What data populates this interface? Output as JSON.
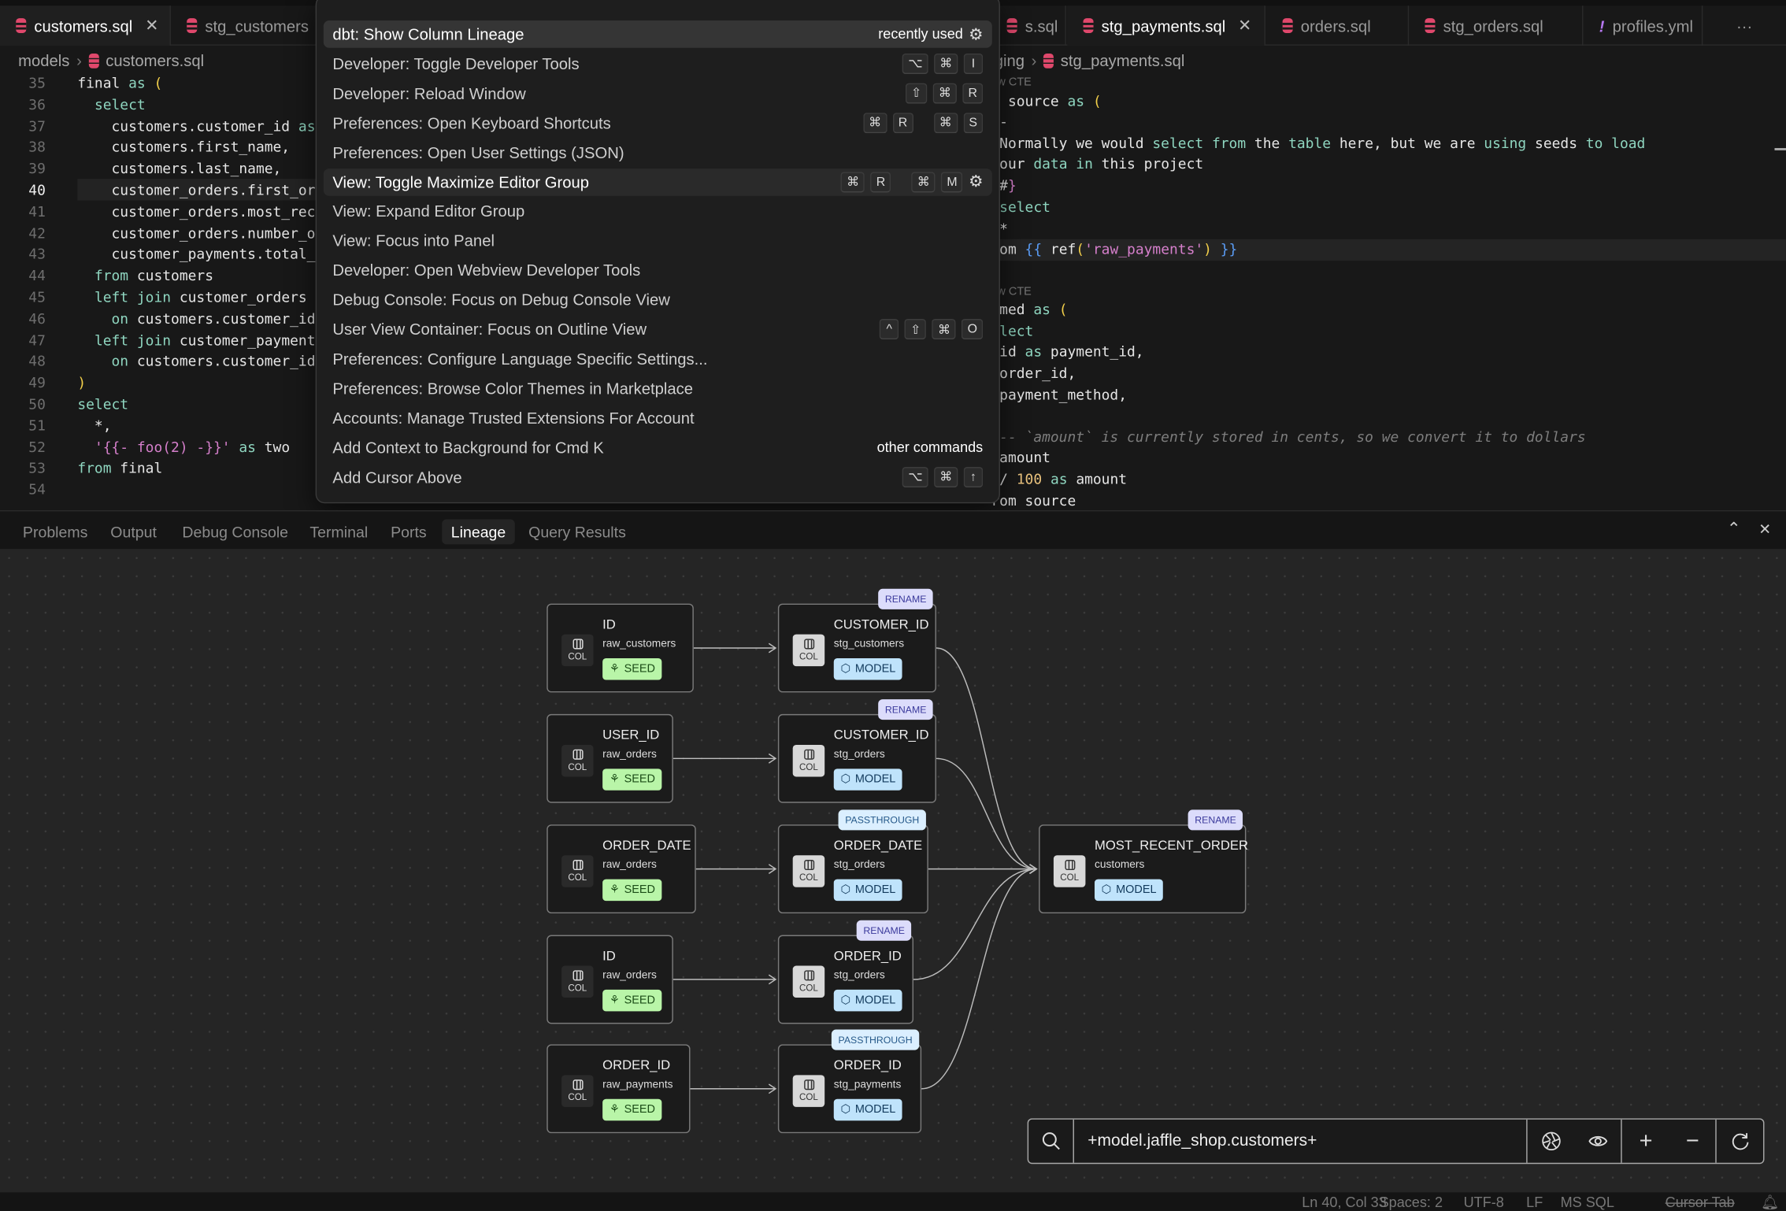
{
  "editor_tabs": [
    {
      "label": "customers.sql",
      "icon": "database-icon",
      "active": true
    },
    {
      "label": "stg_customers",
      "icon": "database-icon"
    },
    {
      "label": "s.sql",
      "icon": "database-icon"
    },
    {
      "label": "stg_payments.sql",
      "icon": "database-icon",
      "active_in_group": true
    },
    {
      "label": "orders.sql",
      "icon": "database-icon"
    },
    {
      "label": "stg_orders.sql",
      "icon": "database-icon"
    },
    {
      "label": "profiles.yml",
      "icon": "yaml-exclamation-icon"
    }
  ],
  "tab_overflow": "···",
  "tab_close": "✕",
  "left_editor": {
    "breadcrumb": [
      "models",
      "customers.sql"
    ],
    "current_line": 40,
    "lines": [
      {
        "n": "35",
        "seg": [
          [
            "final ",
            ""
          ],
          [
            "as",
            "kw"
          ],
          [
            " ",
            ""
          ],
          [
            "(",
            "par"
          ]
        ]
      },
      {
        "n": "36",
        "seg": [
          [
            "  ",
            ""
          ],
          [
            "select",
            "kw"
          ]
        ]
      },
      {
        "n": "37",
        "seg": [
          [
            "    customers.customer_id ",
            ""
          ],
          [
            "as",
            "kw"
          ]
        ]
      },
      {
        "n": "38",
        "seg": [
          [
            "    customers.first_name,",
            ""
          ]
        ]
      },
      {
        "n": "39",
        "seg": [
          [
            "    customers.last_name,",
            ""
          ]
        ]
      },
      {
        "n": "40",
        "seg": [
          [
            "    customer_orders.first_or",
            ""
          ]
        ]
      },
      {
        "n": "41",
        "seg": [
          [
            "    customer_orders.most_rec",
            ""
          ]
        ]
      },
      {
        "n": "42",
        "seg": [
          [
            "    customer_orders.number_o",
            ""
          ]
        ]
      },
      {
        "n": "43",
        "seg": [
          [
            "    customer_payments.total_",
            ""
          ]
        ]
      },
      {
        "n": "44",
        "seg": [
          [
            "  ",
            ""
          ],
          [
            "from",
            "kw"
          ],
          [
            " customers",
            ""
          ]
        ]
      },
      {
        "n": "45",
        "seg": [
          [
            "  ",
            ""
          ],
          [
            "left join",
            "kw"
          ],
          [
            " customer_orders",
            ""
          ]
        ]
      },
      {
        "n": "46",
        "seg": [
          [
            "    ",
            ""
          ],
          [
            "on",
            "kw"
          ],
          [
            " customers.customer_id",
            ""
          ]
        ]
      },
      {
        "n": "47",
        "seg": [
          [
            "  ",
            ""
          ],
          [
            "left join",
            "kw"
          ],
          [
            " customer_payment",
            ""
          ]
        ]
      },
      {
        "n": "48",
        "seg": [
          [
            "    ",
            ""
          ],
          [
            "on",
            "kw"
          ],
          [
            " customers.customer_id",
            ""
          ]
        ]
      },
      {
        "n": "49",
        "seg": [
          [
            ")",
            "par"
          ]
        ]
      },
      {
        "n": "50",
        "seg": [
          [
            "select",
            "kw"
          ]
        ]
      },
      {
        "n": "51",
        "seg": [
          [
            "  *,",
            ""
          ]
        ]
      },
      {
        "n": "52",
        "seg": [
          [
            "  ",
            ""
          ],
          [
            "'{{- foo(2) -}}'",
            "str"
          ],
          [
            " ",
            ""
          ],
          [
            "as",
            "kw"
          ],
          [
            " two",
            ""
          ]
        ]
      },
      {
        "n": "53",
        "seg": [
          [
            "from",
            "kw"
          ],
          [
            " final",
            ""
          ]
        ]
      },
      {
        "n": "54",
        "seg": []
      }
    ]
  },
  "right_editor": {
    "breadcrumb": [
      "ging",
      "stg_payments.sql"
    ],
    "lines": [
      {
        "seg": [
          [
            "ew CTE",
            "lens"
          ]
        ]
      },
      {
        "seg": [
          [
            "n source ",
            ""
          ],
          [
            "as",
            "kw"
          ],
          [
            " ",
            ""
          ],
          [
            "(",
            "par"
          ]
        ]
      },
      {
        "seg": [
          [
            "t-",
            ""
          ]
        ]
      },
      {
        "seg": [
          [
            " Normally we would ",
            ""
          ],
          [
            "select",
            "kw"
          ],
          [
            " ",
            ""
          ],
          [
            "from",
            "kw"
          ],
          [
            " the ",
            ""
          ],
          [
            "table",
            "kw"
          ],
          [
            " here, but we are ",
            ""
          ],
          [
            "using",
            "kw"
          ],
          [
            " seeds ",
            ""
          ],
          [
            "to",
            "kw"
          ],
          [
            " ",
            ""
          ],
          [
            "load",
            "kw"
          ]
        ]
      },
      {
        "seg": [
          [
            " our ",
            ""
          ],
          [
            "data",
            "kw"
          ],
          [
            " ",
            ""
          ],
          [
            "in",
            "kw"
          ],
          [
            " this project",
            ""
          ]
        ]
      },
      {
        "seg": [
          [
            " #",
            ""
          ],
          [
            "}",
            "str"
          ]
        ]
      },
      {
        "seg": [
          [
            " ",
            ""
          ],
          [
            "select",
            "kw"
          ]
        ]
      },
      {
        "seg": [
          [
            " *",
            ""
          ]
        ]
      },
      {
        "seg": [
          [
            "rom ",
            ""
          ],
          [
            "{{",
            "brace"
          ],
          [
            " ref",
            ""
          ],
          [
            "(",
            "par"
          ],
          [
            "'raw_payments'",
            "str"
          ],
          [
            ")",
            "par"
          ],
          [
            " ",
            ""
          ],
          [
            "}}",
            "brace"
          ]
        ],
        "highlight": true
      },
      {
        "seg": []
      },
      {
        "seg": [
          [
            "ew CTE",
            "lens"
          ]
        ]
      },
      {
        "seg": [
          [
            "amed ",
            ""
          ],
          [
            "as",
            "kw"
          ],
          [
            " ",
            ""
          ],
          [
            "(",
            "par"
          ]
        ]
      },
      {
        "seg": [
          [
            "elect",
            "kw"
          ]
        ]
      },
      {
        "seg": [
          [
            " id ",
            ""
          ],
          [
            "as",
            "kw"
          ],
          [
            " payment_id,",
            ""
          ]
        ]
      },
      {
        "seg": [
          [
            " order_id,",
            ""
          ]
        ]
      },
      {
        "seg": [
          [
            " payment_method,",
            ""
          ]
        ]
      },
      {
        "seg": []
      },
      {
        "seg": [
          [
            " -- `amount` is currently stored in cents, so we convert it to dollars",
            "cmt"
          ]
        ]
      },
      {
        "seg": [
          [
            " amount",
            ""
          ]
        ]
      },
      {
        "seg": [
          [
            " / ",
            ""
          ],
          [
            "100",
            "num"
          ],
          [
            " ",
            ""
          ],
          [
            "as",
            "kw"
          ],
          [
            " amount",
            ""
          ]
        ]
      },
      {
        "seg": [
          [
            "rom source",
            ""
          ]
        ]
      }
    ]
  },
  "command_palette": {
    "items": [
      {
        "label": "dbt: Show Column Lineage",
        "hint": "recently used",
        "gear": true,
        "selected": true
      },
      {
        "label": "Developer: Toggle Developer Tools",
        "keys": [
          [
            "⌥",
            "⌘",
            "I"
          ]
        ]
      },
      {
        "label": "Developer: Reload Window",
        "keys": [
          [
            "⇧",
            "⌘",
            "R"
          ]
        ]
      },
      {
        "label": "Preferences: Open Keyboard Shortcuts",
        "keys": [
          [
            "⌘",
            "R"
          ],
          [
            "⌘",
            "S"
          ]
        ]
      },
      {
        "label": "Preferences: Open User Settings (JSON)"
      },
      {
        "label": "View: Toggle Maximize Editor Group",
        "keys": [
          [
            "⌘",
            "R"
          ],
          [
            "⌘",
            "M"
          ]
        ],
        "gear": true,
        "hovered": true
      },
      {
        "label": "View: Expand Editor Group"
      },
      {
        "label": "View: Focus into Panel"
      },
      {
        "label": "Developer: Open Webview Developer Tools"
      },
      {
        "label": "Debug Console: Focus on Debug Console View"
      },
      {
        "label": "User View Container: Focus on Outline View",
        "keys": [
          [
            "^",
            "⇧",
            "⌘",
            "O"
          ]
        ]
      },
      {
        "label": "Preferences: Configure Language Specific Settings..."
      },
      {
        "label": "Preferences: Browse Color Themes in Marketplace"
      },
      {
        "label": "Accounts: Manage Trusted Extensions For Account"
      },
      {
        "label": "Add Context to Background for Cmd K",
        "hint": "other commands"
      },
      {
        "label": "Add Cursor Above",
        "keys": [
          [
            "⌥",
            "⌘",
            "↑"
          ]
        ]
      }
    ]
  },
  "panel": {
    "tabs": [
      "Problems",
      "Output",
      "Debug Console",
      "Terminal",
      "Ports",
      "Lineage",
      "Query Results"
    ],
    "active_tab": "Lineage",
    "maximize_icon": "⌃",
    "close_icon": "✕"
  },
  "lineage": {
    "col_label": "COL",
    "nodes": [
      {
        "id": "a1",
        "name": "ID",
        "model": "raw_customers",
        "type": "SEED"
      },
      {
        "id": "a2",
        "name": "USER_ID",
        "model": "raw_orders",
        "type": "SEED"
      },
      {
        "id": "a3",
        "name": "ORDER_DATE",
        "model": "raw_orders",
        "type": "SEED"
      },
      {
        "id": "a4",
        "name": "ID",
        "model": "raw_orders",
        "type": "SEED"
      },
      {
        "id": "a5",
        "name": "ORDER_ID",
        "model": "raw_payments",
        "type": "SEED"
      },
      {
        "id": "b1",
        "name": "CUSTOMER_ID",
        "model": "stg_customers",
        "type": "MODEL",
        "badge": "RENAME"
      },
      {
        "id": "b2",
        "name": "CUSTOMER_ID",
        "model": "stg_orders",
        "type": "MODEL",
        "badge": "RENAME"
      },
      {
        "id": "b3",
        "name": "ORDER_DATE",
        "model": "stg_orders",
        "type": "MODEL",
        "badge": "PASSTHROUGH"
      },
      {
        "id": "b4",
        "name": "ORDER_ID",
        "model": "stg_orders",
        "type": "MODEL",
        "badge": "RENAME"
      },
      {
        "id": "b5",
        "name": "ORDER_ID",
        "model": "stg_payments",
        "type": "MODEL",
        "badge": "PASSTHROUGH"
      },
      {
        "id": "c1",
        "name": "MOST_RECENT_ORDER",
        "model": "customers",
        "type": "MODEL",
        "badge": "RENAME"
      }
    ],
    "edges": [
      [
        "a1",
        "b1"
      ],
      [
        "a2",
        "b2"
      ],
      [
        "a3",
        "b3"
      ],
      [
        "a4",
        "b4"
      ],
      [
        "a5",
        "b5"
      ],
      [
        "b1",
        "c1"
      ],
      [
        "b2",
        "c1"
      ],
      [
        "b3",
        "c1"
      ],
      [
        "b4",
        "c1"
      ],
      [
        "b5",
        "c1"
      ]
    ],
    "search_value": "+model.jaffle_shop.customers+",
    "toolbar_icons": [
      "search-icon",
      "aperture-icon",
      "eye-icon",
      "zoom-in-icon",
      "zoom-out-icon",
      "refresh-icon"
    ]
  },
  "status_bar": {
    "position": "Ln 40, Col 33",
    "spaces": "Spaces: 2",
    "encoding": "UTF-8",
    "eol": "LF",
    "language": "MS SQL",
    "cursor_tab": "Cursor Tab"
  }
}
